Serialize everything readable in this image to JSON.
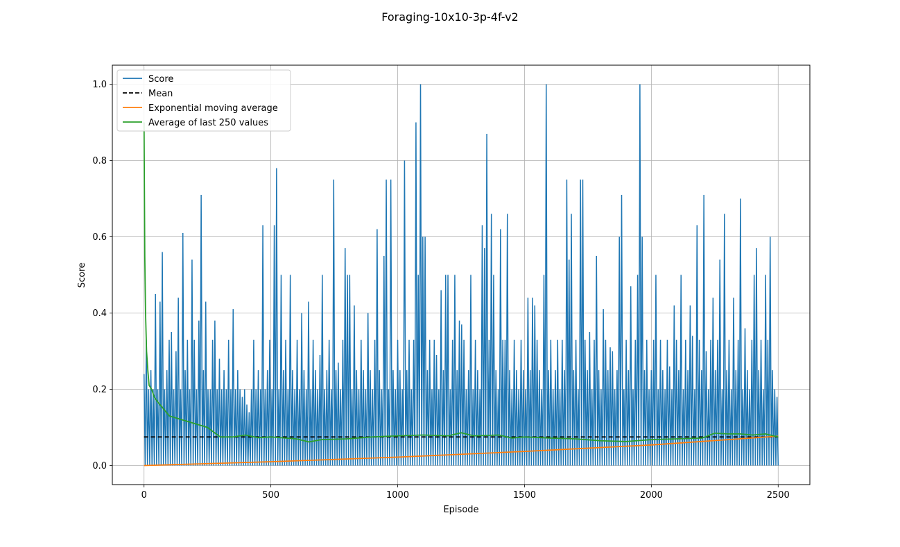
{
  "figure": {
    "title": "Foraging-10x10-3p-4f-v2"
  },
  "chart_data": {
    "type": "line",
    "title": "",
    "xlabel": "Episode",
    "ylabel": "Score",
    "xlim": [
      -125,
      2625
    ],
    "ylim": [
      -0.05,
      1.05
    ],
    "xticks": [
      0,
      500,
      1000,
      1500,
      2000,
      2500
    ],
    "yticks": [
      0.0,
      0.2,
      0.4,
      0.6,
      0.8,
      1.0
    ],
    "xtick_labels": [
      "0",
      "500",
      "1000",
      "1500",
      "2000",
      "2500"
    ],
    "ytick_labels": [
      "0.0",
      "0.2",
      "0.4",
      "0.6",
      "0.8",
      "1.0"
    ],
    "grid": true,
    "legend_position": "top-left",
    "n_episodes": 2500,
    "series": [
      {
        "name": "Score",
        "color": "#1f77b4",
        "style": "solid",
        "values": [
          0.24,
          0.0,
          0.33,
          0.0,
          0.2,
          0.0,
          0.25,
          0.0,
          0.2,
          0.0,
          0.45,
          0.0,
          0.2,
          0.0,
          0.43,
          0.0,
          0.56,
          0.0,
          0.2,
          0.0,
          0.25,
          0.0,
          0.33,
          0.0,
          0.35,
          0.0,
          0.2,
          0.0,
          0.3,
          0.0,
          0.44,
          0.0,
          0.2,
          0.0,
          0.61,
          0.0,
          0.25,
          0.0,
          0.33,
          0.0,
          0.2,
          0.0,
          0.54,
          0.0,
          0.33,
          0.0,
          0.2,
          0.0,
          0.38,
          0.0,
          0.71,
          0.0,
          0.25,
          0.0,
          0.43,
          0.0,
          0.2,
          0.0,
          0.2,
          0.0,
          0.33,
          0.0,
          0.38,
          0.0,
          0.2,
          0.0,
          0.28,
          0.0,
          0.2,
          0.0,
          0.25,
          0.0,
          0.2,
          0.0,
          0.33,
          0.0,
          0.2,
          0.0,
          0.41,
          0.0,
          0.2,
          0.0,
          0.25,
          0.0,
          0.2,
          0.0,
          0.18,
          0.0,
          0.2,
          0.0,
          0.16,
          0.0,
          0.14,
          0.0,
          0.2,
          0.0,
          0.33,
          0.0,
          0.2,
          0.0,
          0.25,
          0.0,
          0.2,
          0.0,
          0.63,
          0.0,
          0.2,
          0.0,
          0.25,
          0.0,
          0.33,
          0.0,
          0.2,
          0.0,
          0.63,
          0.0,
          0.78,
          0.0,
          0.2,
          0.0,
          0.5,
          0.0,
          0.25,
          0.0,
          0.33,
          0.0,
          0.2,
          0.0,
          0.5,
          0.0,
          0.25,
          0.0,
          0.2,
          0.0,
          0.33,
          0.0,
          0.2,
          0.0,
          0.4,
          0.0,
          0.25,
          0.0,
          0.2,
          0.0,
          0.43,
          0.0,
          0.2,
          0.0,
          0.33,
          0.0,
          0.25,
          0.0,
          0.2,
          0.0,
          0.29,
          0.0,
          0.5,
          0.0,
          0.2,
          0.0,
          0.25,
          0.0,
          0.33,
          0.0,
          0.2,
          0.0,
          0.75,
          0.0,
          0.25,
          0.0,
          0.27,
          0.0,
          0.2,
          0.0,
          0.33,
          0.0,
          0.57,
          0.0,
          0.5,
          0.0,
          0.5,
          0.0,
          0.2,
          0.0,
          0.42,
          0.0,
          0.25,
          0.0,
          0.2,
          0.0,
          0.33,
          0.0,
          0.25,
          0.0,
          0.2,
          0.0,
          0.4,
          0.0,
          0.25,
          0.0,
          0.2,
          0.0,
          0.33,
          0.0,
          0.62,
          0.0,
          0.25,
          0.0,
          0.2,
          0.0,
          0.55,
          0.0,
          0.75,
          0.0,
          0.2,
          0.0,
          0.75,
          0.0,
          0.25,
          0.0,
          0.2,
          0.0,
          0.33,
          0.0,
          0.25,
          0.0,
          0.2,
          0.0,
          0.8,
          0.0,
          0.25,
          0.0,
          0.33,
          0.0,
          0.2,
          0.0,
          0.33,
          0.0,
          0.9,
          0.0,
          0.5,
          0.0,
          1.0,
          0.0,
          0.6,
          0.0,
          0.6,
          0.0,
          0.25,
          0.0,
          0.33,
          0.0,
          0.2,
          0.0,
          0.33,
          0.0,
          0.29,
          0.0,
          0.2,
          0.0,
          0.46,
          0.0,
          0.25,
          0.0,
          0.5,
          0.0,
          0.5,
          0.0,
          0.2,
          0.0,
          0.33,
          0.0,
          0.5,
          0.0,
          0.25,
          0.0,
          0.38,
          0.0,
          0.37,
          0.0,
          0.33,
          0.0,
          0.2,
          0.0,
          0.25,
          0.0,
          0.5,
          0.0,
          0.2,
          0.0,
          0.33,
          0.0,
          0.25,
          0.0,
          0.2,
          0.0,
          0.63,
          0.0,
          0.57,
          0.0,
          0.87,
          0.0,
          0.33,
          0.0,
          0.66,
          0.0,
          0.5,
          0.0,
          0.25,
          0.0,
          0.2,
          0.0,
          0.62,
          0.0,
          0.33,
          0.0,
          0.33,
          0.0,
          0.66,
          0.0,
          0.25,
          0.0,
          0.2,
          0.0,
          0.33,
          0.0,
          0.25,
          0.0,
          0.2,
          0.0,
          0.33,
          0.0,
          0.25,
          0.0,
          0.2,
          0.0,
          0.44,
          0.0,
          0.25,
          0.0,
          0.44,
          0.0,
          0.42,
          0.0,
          0.33,
          0.0,
          0.25,
          0.0,
          0.2,
          0.0,
          0.5,
          0.0,
          1.0,
          0.0,
          0.25,
          0.0,
          0.33,
          0.0,
          0.2,
          0.0,
          0.25,
          0.0,
          0.33,
          0.0,
          0.2,
          0.0,
          0.33,
          0.0,
          0.25,
          0.0,
          0.75,
          0.0,
          0.54,
          0.0,
          0.66,
          0.0,
          0.25,
          0.0,
          0.33,
          0.0,
          0.2,
          0.0,
          0.75,
          0.0,
          0.75,
          0.0,
          0.33,
          0.0,
          0.25,
          0.0,
          0.35,
          0.0,
          0.2,
          0.0,
          0.33,
          0.0,
          0.55,
          0.0,
          0.25,
          0.0,
          0.2,
          0.0,
          0.41,
          0.0,
          0.33,
          0.0,
          0.25,
          0.0,
          0.31,
          0.0,
          0.3,
          0.0,
          0.2,
          0.0,
          0.25,
          0.0,
          0.6,
          0.0,
          0.71,
          0.0,
          0.2,
          0.0,
          0.33,
          0.0,
          0.25,
          0.0,
          0.47,
          0.0,
          0.2,
          0.0,
          0.33,
          0.0,
          0.5,
          0.0,
          1.0,
          0.0,
          0.6,
          0.0,
          0.25,
          0.0,
          0.33,
          0.0,
          0.2,
          0.0,
          0.25,
          0.0,
          0.33,
          0.0,
          0.5,
          0.0,
          0.2,
          0.0,
          0.33,
          0.0,
          0.25,
          0.0,
          0.2,
          0.0,
          0.33,
          0.0,
          0.26,
          0.0,
          0.2,
          0.0,
          0.42,
          0.0,
          0.33,
          0.0,
          0.25,
          0.0,
          0.5,
          0.0,
          0.2,
          0.0,
          0.33,
          0.0,
          0.25,
          0.0,
          0.42,
          0.0,
          0.34,
          0.0,
          0.2,
          0.0,
          0.63,
          0.0,
          0.33,
          0.0,
          0.25,
          0.0,
          0.71,
          0.0,
          0.3,
          0.0,
          0.2,
          0.0,
          0.33,
          0.0,
          0.44,
          0.0,
          0.25,
          0.0,
          0.33,
          0.0,
          0.54,
          0.0,
          0.2,
          0.0,
          0.66,
          0.0,
          0.25,
          0.0,
          0.33,
          0.0,
          0.2,
          0.0,
          0.44,
          0.0,
          0.25,
          0.0,
          0.33,
          0.0,
          0.7,
          0.0,
          0.2,
          0.0,
          0.36,
          0.0,
          0.25,
          0.0,
          0.2,
          0.0,
          0.33,
          0.0,
          0.5,
          0.0,
          0.57,
          0.0,
          0.25,
          0.0,
          0.33,
          0.0,
          0.2,
          0.0,
          0.5,
          0.0,
          0.33,
          0.0,
          0.6,
          0.0,
          0.25,
          0.0,
          0.2,
          0.0,
          0.18
        ]
      },
      {
        "name": "Mean",
        "color": "#000000",
        "style": "dashed",
        "value": 0.075
      },
      {
        "name": "Exponential moving average",
        "color": "#ff7f0e",
        "style": "solid",
        "x": [
          0,
          500,
          1000,
          1500,
          2000,
          2500
        ],
        "values": [
          0.0,
          0.01,
          0.022,
          0.037,
          0.054,
          0.077
        ]
      },
      {
        "name": "Average of last 250 values",
        "color": "#2ca02c",
        "style": "solid",
        "x": [
          0,
          3,
          6,
          10,
          15,
          20,
          30,
          40,
          50,
          75,
          100,
          150,
          200,
          250,
          300,
          350,
          400,
          450,
          500,
          600,
          650,
          700,
          800,
          900,
          1000,
          1100,
          1200,
          1250,
          1300,
          1400,
          1450,
          1500,
          1600,
          1700,
          1800,
          1900,
          2000,
          2100,
          2200,
          2250,
          2300,
          2350,
          2400,
          2450,
          2500
        ],
        "values": [
          0.9,
          0.55,
          0.4,
          0.3,
          0.25,
          0.21,
          0.2,
          0.18,
          0.17,
          0.15,
          0.13,
          0.12,
          0.11,
          0.1,
          0.075,
          0.075,
          0.08,
          0.073,
          0.075,
          0.07,
          0.062,
          0.068,
          0.07,
          0.075,
          0.078,
          0.08,
          0.078,
          0.086,
          0.078,
          0.08,
          0.072,
          0.075,
          0.072,
          0.07,
          0.065,
          0.063,
          0.068,
          0.07,
          0.072,
          0.085,
          0.083,
          0.083,
          0.08,
          0.083,
          0.075
        ]
      }
    ]
  }
}
